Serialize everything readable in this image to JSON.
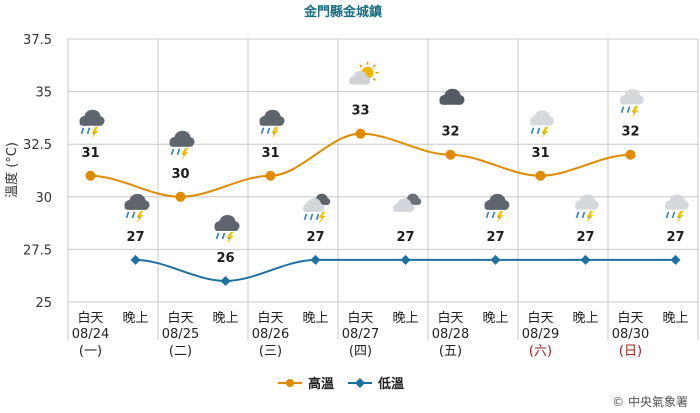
{
  "chart_data": {
    "type": "line",
    "title": "金門縣金城鎮",
    "ylabel": "溫度 (°C)",
    "ylim": [
      25,
      37.5
    ],
    "yticks": [
      "37.5",
      "35",
      "32.5",
      "30",
      "27.5",
      "25"
    ],
    "ytick_values": [
      37.5,
      35,
      32.5,
      30,
      27.5,
      25
    ],
    "grid": true,
    "legend_position": "bottom-center",
    "colors": {
      "high": "#e08a00",
      "low": "#1f6fa0",
      "title": "#1a6f83",
      "weekend": "#9a1c1c",
      "grid": "#c8c8c8"
    },
    "periods": [
      {
        "line1": "白天",
        "date": "08/24",
        "weekday": "(一)",
        "weekend": false
      },
      {
        "line1": "晚上",
        "date": "",
        "weekday": "",
        "weekend": false
      },
      {
        "line1": "白天",
        "date": "08/25",
        "weekday": "(二)",
        "weekend": false
      },
      {
        "line1": "晚上",
        "date": "",
        "weekday": "",
        "weekend": false
      },
      {
        "line1": "白天",
        "date": "08/26",
        "weekday": "(三)",
        "weekend": false
      },
      {
        "line1": "晚上",
        "date": "",
        "weekday": "",
        "weekend": false
      },
      {
        "line1": "白天",
        "date": "08/27",
        "weekday": "(四)",
        "weekend": false
      },
      {
        "line1": "晚上",
        "date": "",
        "weekday": "",
        "weekend": false
      },
      {
        "line1": "白天",
        "date": "08/28",
        "weekday": "(五)",
        "weekend": false
      },
      {
        "line1": "晚上",
        "date": "",
        "weekday": "",
        "weekend": false
      },
      {
        "line1": "白天",
        "date": "08/29",
        "weekday": "(六)",
        "weekend": true
      },
      {
        "line1": "晚上",
        "date": "",
        "weekday": "",
        "weekend": false
      },
      {
        "line1": "白天",
        "date": "08/30",
        "weekday": "(日)",
        "weekend": true
      },
      {
        "line1": "晚上",
        "date": "",
        "weekday": "",
        "weekend": false
      }
    ],
    "series": [
      {
        "name": "高溫",
        "key": "high",
        "points": [
          {
            "period": 0,
            "value": 31
          },
          {
            "period": 2,
            "value": 30
          },
          {
            "period": 4,
            "value": 31
          },
          {
            "period": 6,
            "value": 33
          },
          {
            "period": 8,
            "value": 32
          },
          {
            "period": 10,
            "value": 31
          },
          {
            "period": 12,
            "value": 32
          }
        ]
      },
      {
        "name": "低溫",
        "key": "low",
        "points": [
          {
            "period": 1,
            "value": 27
          },
          {
            "period": 3,
            "value": 26
          },
          {
            "period": 5,
            "value": 27
          },
          {
            "period": 7,
            "value": 27
          },
          {
            "period": 9,
            "value": 27
          },
          {
            "period": 11,
            "value": 27
          },
          {
            "period": 13,
            "value": 27
          }
        ]
      }
    ],
    "weather_icons": [
      {
        "period": 0,
        "icon": "thunderstorm-icon",
        "value": 31
      },
      {
        "period": 1,
        "icon": "thunderstorm-icon",
        "value": 27
      },
      {
        "period": 2,
        "icon": "thunderstorm-icon",
        "value": 30
      },
      {
        "period": 3,
        "icon": "thunderstorm-icon",
        "value": 26
      },
      {
        "period": 4,
        "icon": "thunderstorm-icon",
        "value": 31
      },
      {
        "period": 5,
        "icon": "cloudy-thunderstorm-icon",
        "value": 27
      },
      {
        "period": 6,
        "icon": "partly-cloudy-icon",
        "value": 33
      },
      {
        "period": 7,
        "icon": "cloudy-icon",
        "value": 27
      },
      {
        "period": 8,
        "icon": "overcast-icon",
        "value": 32
      },
      {
        "period": 9,
        "icon": "thunderstorm-icon",
        "value": 27
      },
      {
        "period": 10,
        "icon": "rain-icon",
        "value": 31
      },
      {
        "period": 11,
        "icon": "rain-icon",
        "value": 27
      },
      {
        "period": 12,
        "icon": "rain-icon",
        "value": 32
      },
      {
        "period": 13,
        "icon": "rain-icon",
        "value": 27
      }
    ]
  },
  "footer": {
    "copyright": "© 中央氣象署"
  }
}
